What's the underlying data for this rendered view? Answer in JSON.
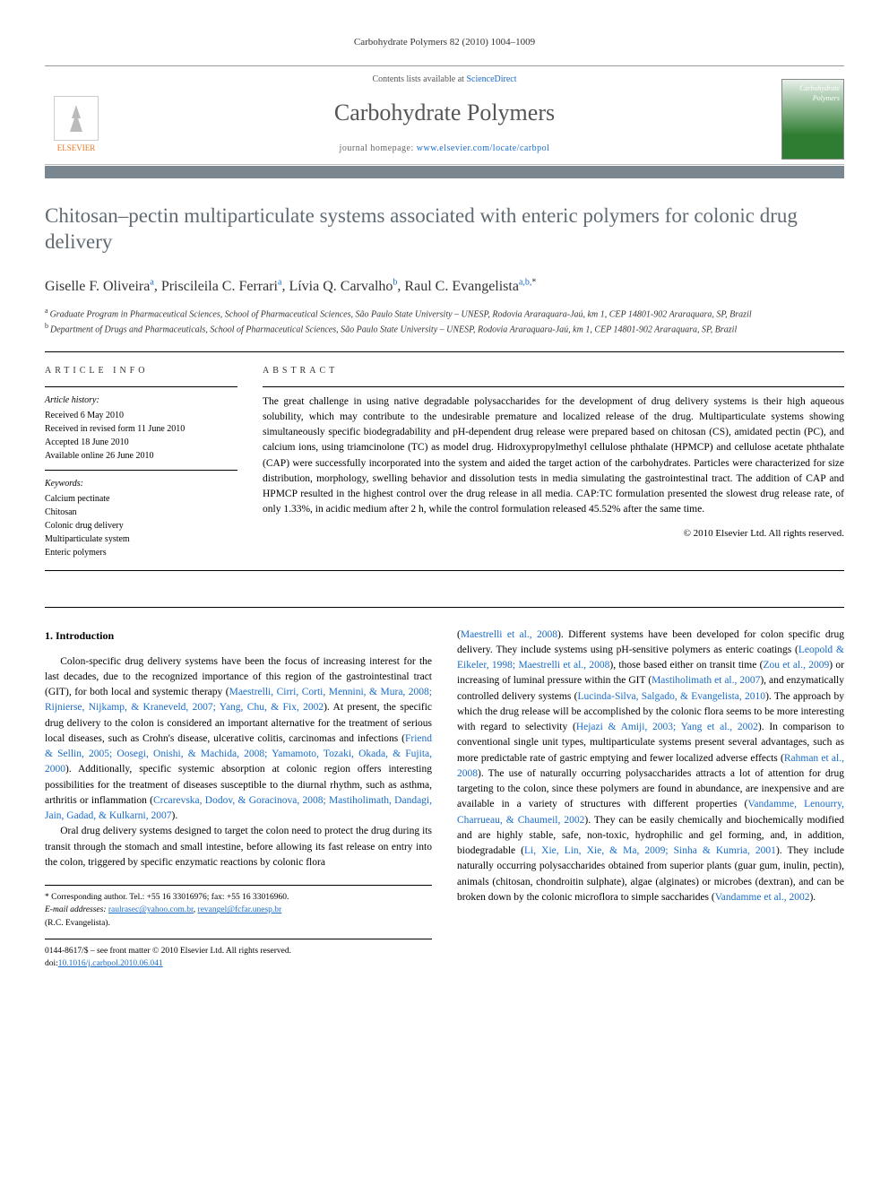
{
  "runningHead": "Carbohydrate Polymers 82 (2010) 1004–1009",
  "contentsLine": {
    "prefix": "Contents lists available at ",
    "linkText": "ScienceDirect"
  },
  "journalName": "Carbohydrate Polymers",
  "homepageLine": {
    "prefix": "journal homepage: ",
    "linkText": "www.elsevier.com/locate/carbpol"
  },
  "elsevierName": "ELSEVIER",
  "coverTitle": "Carbohydrate Polymers",
  "articleTitle": "Chitosan–pectin multiparticulate systems associated with enteric polymers for colonic drug delivery",
  "authors": [
    {
      "name": "Giselle F. Oliveira",
      "sup": "a"
    },
    {
      "name": "Priscileila C. Ferrari",
      "sup": "a"
    },
    {
      "name": "Lívia Q. Carvalho",
      "sup": "b"
    },
    {
      "name": "Raul C. Evangelista",
      "sup": "a,b,",
      "star": true
    }
  ],
  "affiliations": [
    {
      "sup": "a",
      "text": "Graduate Program in Pharmaceutical Sciences, School of Pharmaceutical Sciences, São Paulo State University – UNESP, Rodovia Araraquara-Jaú, km 1, CEP 14801-902 Araraquara, SP, Brazil"
    },
    {
      "sup": "b",
      "text": "Department of Drugs and Pharmaceuticals, School of Pharmaceutical Sciences, São Paulo State University – UNESP, Rodovia Araraquara-Jaú, km 1, CEP 14801-902 Araraquara, SP, Brazil"
    }
  ],
  "infoHead": "article info",
  "abstractHead": "abstract",
  "history": {
    "label": "Article history:",
    "items": [
      "Received 6 May 2010",
      "Received in revised form 11 June 2010",
      "Accepted 18 June 2010",
      "Available online 26 June 2010"
    ]
  },
  "keywords": {
    "label": "Keywords:",
    "items": [
      "Calcium pectinate",
      "Chitosan",
      "Colonic drug delivery",
      "Multiparticulate system",
      "Enteric polymers"
    ]
  },
  "abstractText": "The great challenge in using native degradable polysaccharides for the development of drug delivery systems is their high aqueous solubility, which may contribute to the undesirable premature and localized release of the drug. Multiparticulate systems showing simultaneously specific biodegradability and pH-dependent drug release were prepared based on chitosan (CS), amidated pectin (PC), and calcium ions, using triamcinolone (TC) as model drug. Hidroxypropylmethyl cellulose phthalate (HPMCP) and cellulose acetate phthalate (CAP) were successfully incorporated into the system and aided the target action of the carbohydrates. Particles were characterized for size distribution, morphology, swelling behavior and dissolution tests in media simulating the gastrointestinal tract. The addition of CAP and HPMCP resulted in the highest control over the drug release in all media. CAP:TC formulation presented the slowest drug release rate, of only 1.33%, in acidic medium after 2 h, while the control formulation released 45.52% after the same time.",
  "copyright": "© 2010 Elsevier Ltd. All rights reserved.",
  "section1": {
    "head": "1. Introduction",
    "para1_a": "Colon-specific drug delivery systems have been the focus of increasing interest for the last decades, due to the recognized importance of this region of the gastrointestinal tract (GIT), for both local and systemic therapy (",
    "para1_cite1": "Maestrelli, Cirri, Corti, Mennini, & Mura, 2008; Rijnierse, Nijkamp, & Kraneveld, 2007; Yang, Chu, & Fix, 2002",
    "para1_b": "). At present, the specific drug delivery to the colon is considered an important alternative for the treatment of serious local diseases, such as Crohn's disease, ulcerative colitis, carcinomas and infections (",
    "para1_cite2": "Friend & Sellin, 2005; Oosegi, Onishi, & Machida, 2008; Yamamoto, Tozaki, Okada, & Fujita, 2000",
    "para1_c": "). Additionally, specific systemic absorption at colonic region offers interesting possibilities for the treatment of diseases susceptible to the diurnal rhythm, such as asthma, arthritis or inflammation (",
    "para1_cite3": "Crcarevska, Dodov, & Goracinova, 2008; Mastiholimath, Dandagi, Jain, Gadad, & Kulkarni, 2007",
    "para1_d": ").",
    "para2": "Oral drug delivery systems designed to target the colon need to protect the drug during its transit through the stomach and small intestine, before allowing its fast release on entry into the colon, triggered by specific enzymatic reactions by colonic flora"
  },
  "col2": {
    "a": "(",
    "cite1": "Maestrelli et al., 2008",
    "b": "). Different systems have been developed for colon specific drug delivery. They include systems using pH-sensitive polymers as enteric coatings (",
    "cite2": "Leopold & Eikeler, 1998; Maestrelli et al., 2008",
    "c": "), those based either on transit time (",
    "cite3": "Zou et al., 2009",
    "d": ") or increasing of luminal pressure within the GIT (",
    "cite4": "Mastiholimath et al., 2007",
    "e": "), and enzymatically controlled delivery systems (",
    "cite5": "Lucinda-Silva, Salgado, & Evangelista, 2010",
    "f": "). The approach by which the drug release will be accomplished by the colonic flora seems to be more interesting with regard to selectivity (",
    "cite6": "Hejazi & Amiji, 2003; Yang et al., 2002",
    "g": "). In comparison to conventional single unit types, multiparticulate systems present several advantages, such as more predictable rate of gastric emptying and fewer localized adverse effects (",
    "cite7": "Rahman et al., 2008",
    "h": "). The use of naturally occurring polysaccharides attracts a lot of attention for drug targeting to the colon, since these polymers are found in abundance, are inexpensive and are available in a variety of structures with different properties (",
    "cite8": "Vandamme, Lenourry, Charrueau, & Chaumeil, 2002",
    "i": "). They can be easily chemically and biochemically modified and are highly stable, safe, non-toxic, hydrophilic and gel forming, and, in addition, biodegradable (",
    "cite9": "Li, Xie, Lin, Xie, & Ma, 2009; Sinha & Kumria, 2001",
    "j": "). They include naturally occurring polysaccharides obtained from superior plants (guar gum, inulin, pectin), animals (chitosan, chondroitin sulphate), algae (alginates) or microbes (dextran), and can be broken down by the colonic microflora to simple saccharides (",
    "cite10": "Vandamme et al., 2002",
    "k": ")."
  },
  "footnotes": {
    "corresp": "* Corresponding author. Tel.: +55 16 33016976; fax: +55 16 33016960.",
    "emailLabel": "E-mail addresses: ",
    "email1": "raulrasec@yahoo.com.br",
    "email2": "revangel@fcfar.unesp.br",
    "emailSuffix": "(R.C. Evangelista)."
  },
  "bottom": {
    "issn": "0144-8617/$ – see front matter © 2010 Elsevier Ltd. All rights reserved.",
    "doiLabel": "doi:",
    "doi": "10.1016/j.carbpol.2010.06.041"
  }
}
